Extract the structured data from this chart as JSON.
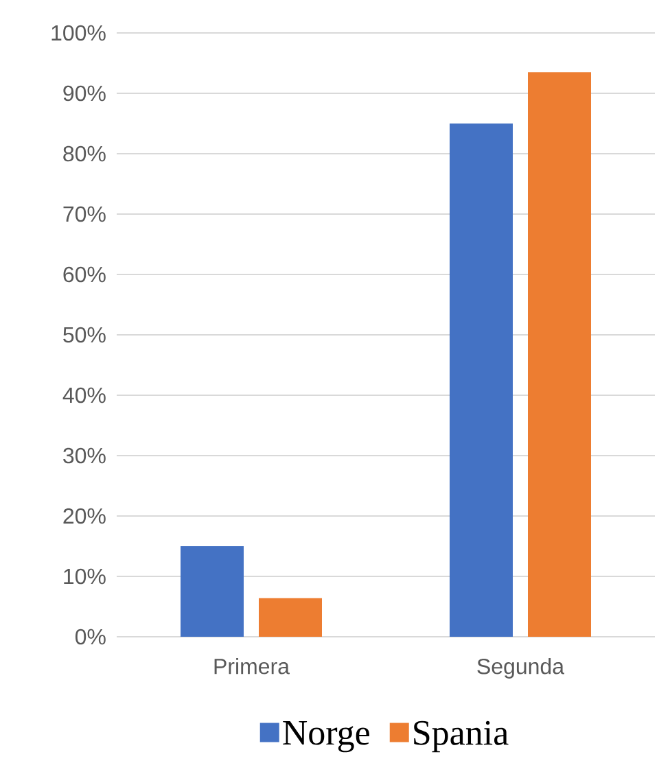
{
  "chart_data": {
    "type": "bar",
    "categories": [
      "Primera",
      "Segunda"
    ],
    "series": [
      {
        "name": "Norge",
        "color": "#4472c4",
        "values": [
          15.0,
          85.0
        ]
      },
      {
        "name": "Spania",
        "color": "#ed7d31",
        "values": [
          6.4,
          93.5
        ]
      }
    ],
    "ylim": [
      0,
      100
    ],
    "yticks": [
      {
        "value": 0,
        "label": "0%"
      },
      {
        "value": 10,
        "label": "10%"
      },
      {
        "value": 20,
        "label": "20%"
      },
      {
        "value": 30,
        "label": "30%"
      },
      {
        "value": 40,
        "label": "40%"
      },
      {
        "value": 50,
        "label": "50%"
      },
      {
        "value": 60,
        "label": "60%"
      },
      {
        "value": 70,
        "label": "70%"
      },
      {
        "value": 80,
        "label": "80%"
      },
      {
        "value": 90,
        "label": "90%"
      },
      {
        "value": 100,
        "label": "100%"
      }
    ],
    "grid": "y",
    "legend": "bottom"
  }
}
